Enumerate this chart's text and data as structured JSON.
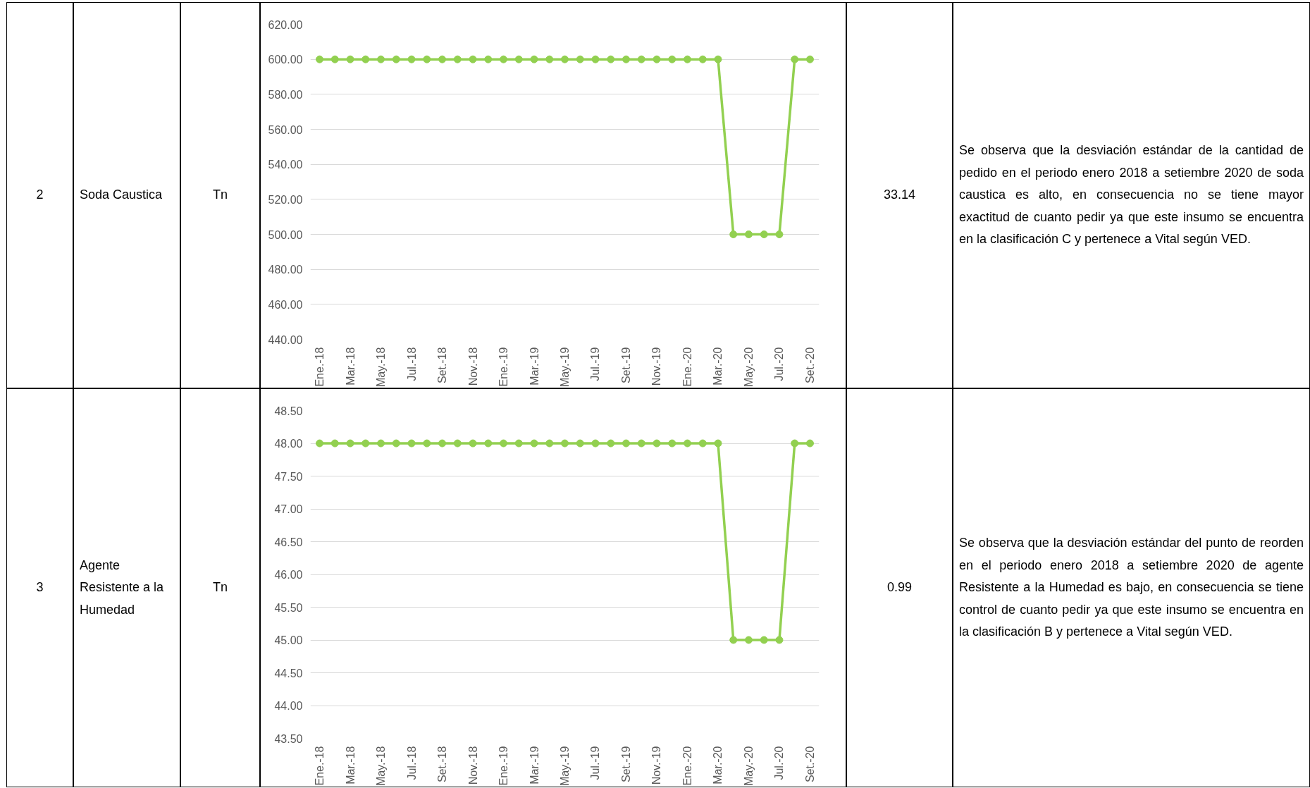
{
  "chart_data": [
    {
      "type": "other",
      "annotations": [
        "2",
        "Soda Caustica",
        "Tn"
      ]
    },
    {
      "type": "line",
      "categories": [
        "Ene.-18",
        null,
        "Mar.-18",
        null,
        "May.-18",
        null,
        "Jul.-18",
        null,
        "Set.-18",
        null,
        "Nov.-18",
        null,
        "Ene.-19",
        null,
        "Mar.-19",
        null,
        "May.-19",
        null,
        "Jul.-19",
        null,
        "Set.-19",
        null,
        "Nov.-19",
        null,
        "Ene.-20",
        null,
        "Mar.-20",
        null,
        "May.-20",
        null,
        "Jul.-20",
        null,
        "Set.-20"
      ],
      "values": [
        600,
        600,
        600,
        600,
        600,
        600,
        600,
        600,
        600,
        600,
        600,
        600,
        600,
        600,
        600,
        600,
        600,
        600,
        600,
        600,
        600,
        600,
        600,
        600,
        600,
        600,
        600,
        500,
        500,
        500,
        500,
        600,
        600
      ],
      "color": "#92d050",
      "marker": "circle",
      "grid": "y",
      "ylim": [
        440,
        620
      ],
      "yticks": [
        {
          "value": 440,
          "label": "440.00"
        },
        {
          "value": 460,
          "label": "460.00"
        },
        {
          "value": 480,
          "label": "480.00"
        },
        {
          "value": 500,
          "label": "500.00"
        },
        {
          "value": 520,
          "label": "520.00"
        },
        {
          "value": 540,
          "label": "540.00"
        },
        {
          "value": 560,
          "label": "560.00"
        },
        {
          "value": 580,
          "label": "580.00"
        },
        {
          "value": 600,
          "label": "600.00"
        },
        {
          "value": 620,
          "label": "620.00"
        }
      ]
    },
    {
      "type": "other",
      "annotations": [
        "33.14",
        "Se observa que la desviación estándar de la cantidad de pedido en el periodo enero 2018 a setiembre 2020 de soda caustica es alto, en consecuencia no se tiene mayor exactitud de cuanto pedir ya que este insumo se encuentra en la clasificación C y pertenece a Vital según VED."
      ]
    },
    {
      "type": "other",
      "annotations": [
        "3",
        "Agente Resistente a la Humedad",
        "Tn"
      ]
    },
    {
      "type": "line",
      "categories": [
        "Ene.-18",
        null,
        "Mar.-18",
        null,
        "May.-18",
        null,
        "Jul.-18",
        null,
        "Set.-18",
        null,
        "Nov.-18",
        null,
        "Ene.-19",
        null,
        "Mar.-19",
        null,
        "May.-19",
        null,
        "Jul.-19",
        null,
        "Set.-19",
        null,
        "Nov.-19",
        null,
        "Ene.-20",
        null,
        "Mar.-20",
        null,
        "May.-20",
        null,
        "Jul.-20",
        null,
        "Set.-20"
      ],
      "values": [
        48,
        48,
        48,
        48,
        48,
        48,
        48,
        48,
        48,
        48,
        48,
        48,
        48,
        48,
        48,
        48,
        48,
        48,
        48,
        48,
        48,
        48,
        48,
        48,
        48,
        48,
        48,
        45,
        45,
        45,
        45,
        48,
        48
      ],
      "color": "#92d050",
      "marker": "circle",
      "grid": "y",
      "ylim": [
        43.5,
        48.5
      ],
      "yticks": [
        {
          "value": 43.5,
          "label": "43.50"
        },
        {
          "value": 44,
          "label": "44.00"
        },
        {
          "value": 44.5,
          "label": "44.50"
        },
        {
          "value": 45,
          "label": "45.00"
        },
        {
          "value": 45.5,
          "label": "45.50"
        },
        {
          "value": 46,
          "label": "46.00"
        },
        {
          "value": 46.5,
          "label": "46.50"
        },
        {
          "value": 47,
          "label": "47.00"
        },
        {
          "value": 47.5,
          "label": "47.50"
        },
        {
          "value": 48,
          "label": "48.00"
        },
        {
          "value": 48.5,
          "label": "48.50"
        }
      ]
    },
    {
      "type": "other",
      "annotations": [
        "0.99",
        "Se observa que la desviación estándar del punto de reorden en el periodo enero 2018 a setiembre 2020 de agente Resistente a la Humedad es bajo, en consecuencia se tiene control de cuanto pedir ya que este insumo se encuentra en la clasificación B y pertenece a Vital según VED."
      ]
    }
  ]
}
